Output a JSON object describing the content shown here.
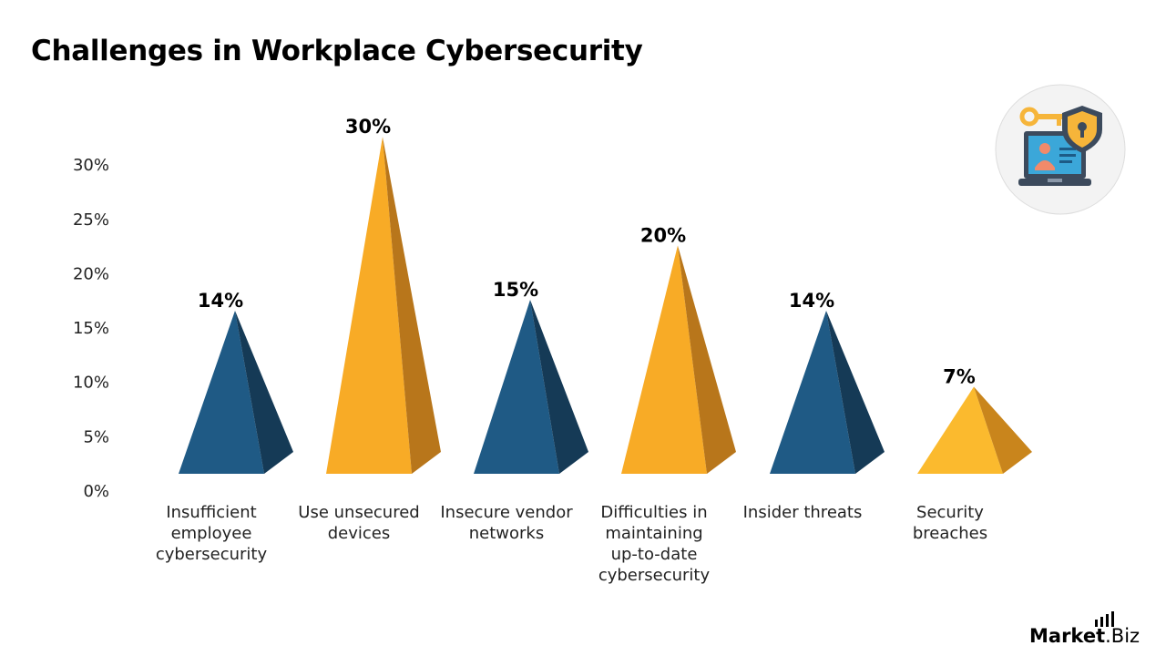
{
  "title": "Challenges in Workplace Cybersecurity",
  "chart_data": {
    "type": "bar",
    "style": "3d-pyramid",
    "categories": [
      [
        "Insufficient",
        "employee",
        "cybersecurity"
      ],
      [
        "Use unsecured",
        "devices"
      ],
      [
        "Insecure vendor",
        "networks"
      ],
      [
        "Difficulties in",
        "maintaining",
        "up-to-date",
        "cybersecurity"
      ],
      [
        "Insider threats"
      ],
      [
        "Security",
        "breaches"
      ]
    ],
    "values": [
      14,
      30,
      15,
      20,
      14,
      7
    ],
    "value_labels": [
      "14%",
      "30%",
      "15%",
      "20%",
      "14%",
      "7%"
    ],
    "ylim": [
      0,
      30
    ],
    "yticks": [
      "0%",
      "5%",
      "10%",
      "15%",
      "20%",
      "25%",
      "30%"
    ],
    "colors": [
      "#1f5a85",
      "#f8ab26",
      "#1f5a85",
      "#f8ab26",
      "#1f5a85",
      "#fbba2e"
    ],
    "shade_colors": [
      "#153a56",
      "#b8761b",
      "#153a56",
      "#b8761b",
      "#153a56",
      "#c9851c"
    ],
    "grid": false,
    "legend": "none"
  },
  "brand": {
    "part1": "Market",
    "part2": ".Biz"
  },
  "icon": "cybersecurity-laptop-shield-key-icon"
}
